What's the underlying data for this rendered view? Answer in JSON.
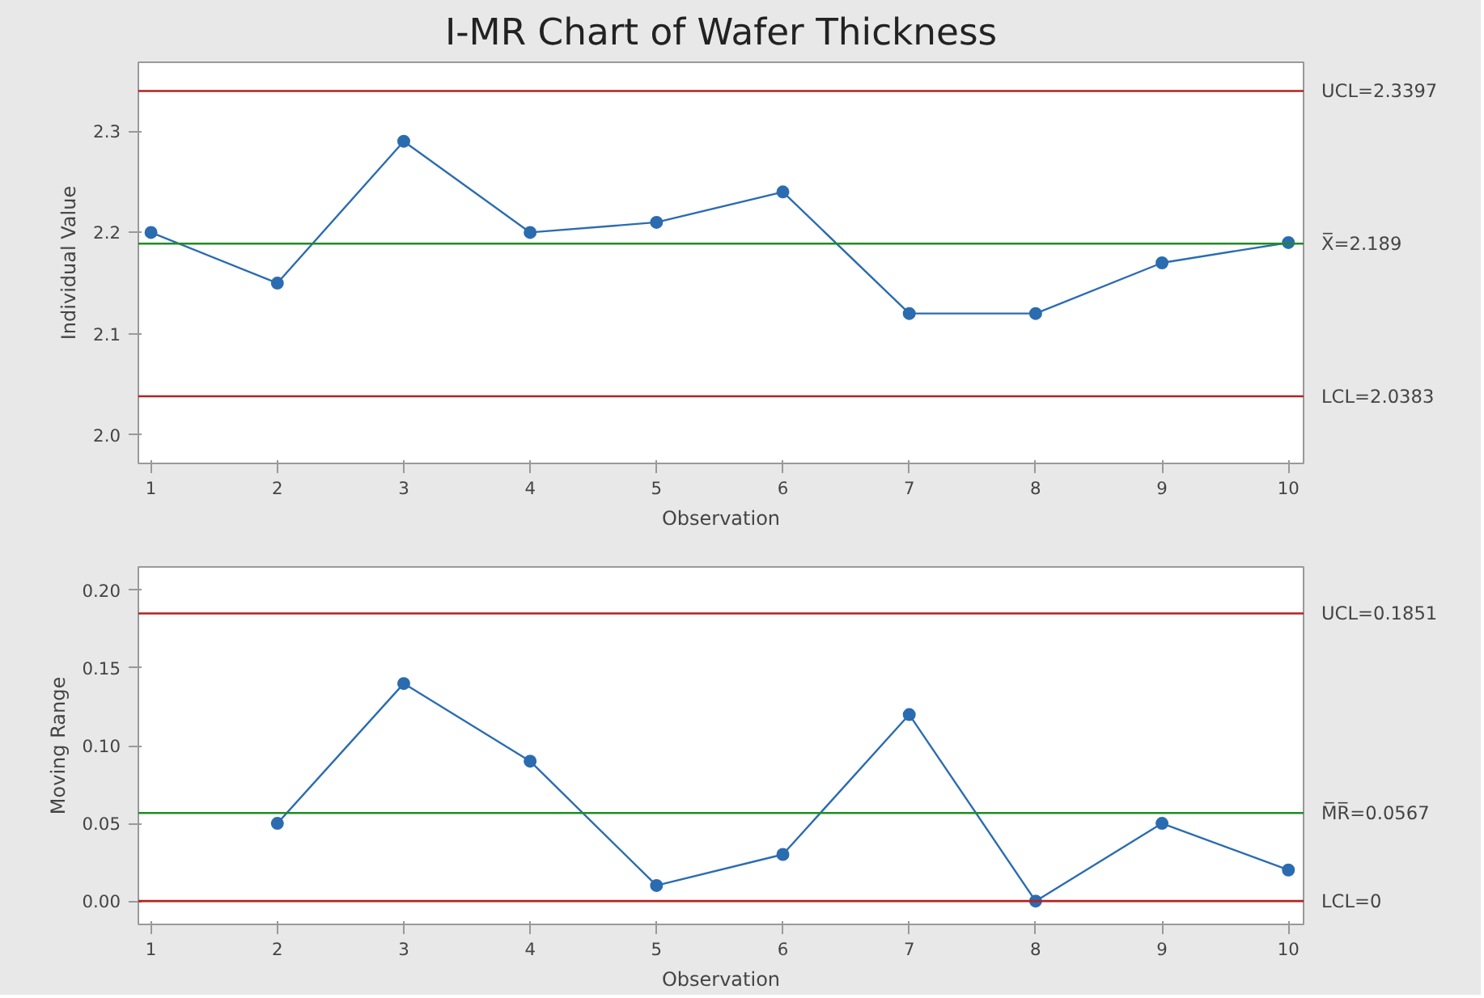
{
  "chart_data": [
    {
      "type": "line",
      "title": "I-MR Chart of Wafer Thickness",
      "xlabel": "Observation",
      "ylabel": "Individual Value",
      "x": [
        1,
        2,
        3,
        4,
        5,
        6,
        7,
        8,
        9,
        10
      ],
      "marker": "circle",
      "line_style": "solid",
      "grid": false,
      "series": [
        {
          "color": "#2b6cb0",
          "values": [
            2.2,
            2.15,
            2.29,
            2.2,
            2.21,
            2.24,
            2.12,
            2.12,
            2.17,
            2.19
          ]
        }
      ],
      "xlim": [
        0.9,
        10.12
      ],
      "ylim": [
        1.972,
        2.368
      ],
      "xticks": [
        1,
        2,
        3,
        4,
        5,
        6,
        7,
        8,
        9,
        10
      ],
      "yticks": [
        {
          "value": 2.0,
          "label": "2.0"
        },
        {
          "value": 2.1,
          "label": "2.1"
        },
        {
          "value": 2.2,
          "label": "2.2"
        },
        {
          "value": 2.3,
          "label": "2.3"
        }
      ],
      "ref_lines": [
        {
          "axis": "y",
          "value": 2.3397,
          "label": "UCL=2.3397",
          "color": "#b22222"
        },
        {
          "axis": "y",
          "value": 2.189,
          "label": "X̅=2.189",
          "color": "#228b22"
        },
        {
          "axis": "y",
          "value": 2.0383,
          "label": "LCL=2.0383",
          "color": "#b22222"
        }
      ]
    },
    {
      "type": "line",
      "xlabel": "Observation",
      "ylabel": "Moving Range",
      "marker": "circle",
      "line_style": "solid",
      "grid": false,
      "series": [
        {
          "color": "#2b6cb0",
          "x": [
            2,
            3,
            4,
            5,
            6,
            7,
            8,
            9,
            10
          ],
          "values": [
            0.05,
            0.14,
            0.09,
            0.01,
            0.03,
            0.12,
            0.0,
            0.05,
            0.02
          ]
        }
      ],
      "xlim": [
        0.9,
        10.12
      ],
      "ylim": [
        -0.015,
        0.215
      ],
      "xticks": [
        1,
        2,
        3,
        4,
        5,
        6,
        7,
        8,
        9,
        10
      ],
      "yticks": [
        {
          "value": 0,
          "label": "0.00"
        },
        {
          "value": 0.05,
          "label": "0.05"
        },
        {
          "value": 0.1,
          "label": "0.10"
        },
        {
          "value": 0.15,
          "label": "0.15"
        },
        {
          "value": 0.2,
          "label": "0.20"
        }
      ],
      "ref_lines": [
        {
          "axis": "y",
          "value": 0.1851,
          "label": "UCL=0.1851",
          "color": "#b22222"
        },
        {
          "axis": "y",
          "value": 0.0567,
          "label": "M̅R̅=0.0567",
          "color": "#228b22"
        },
        {
          "axis": "y",
          "value": 0,
          "label": "LCL=0",
          "color": "#b22222"
        }
      ]
    }
  ]
}
